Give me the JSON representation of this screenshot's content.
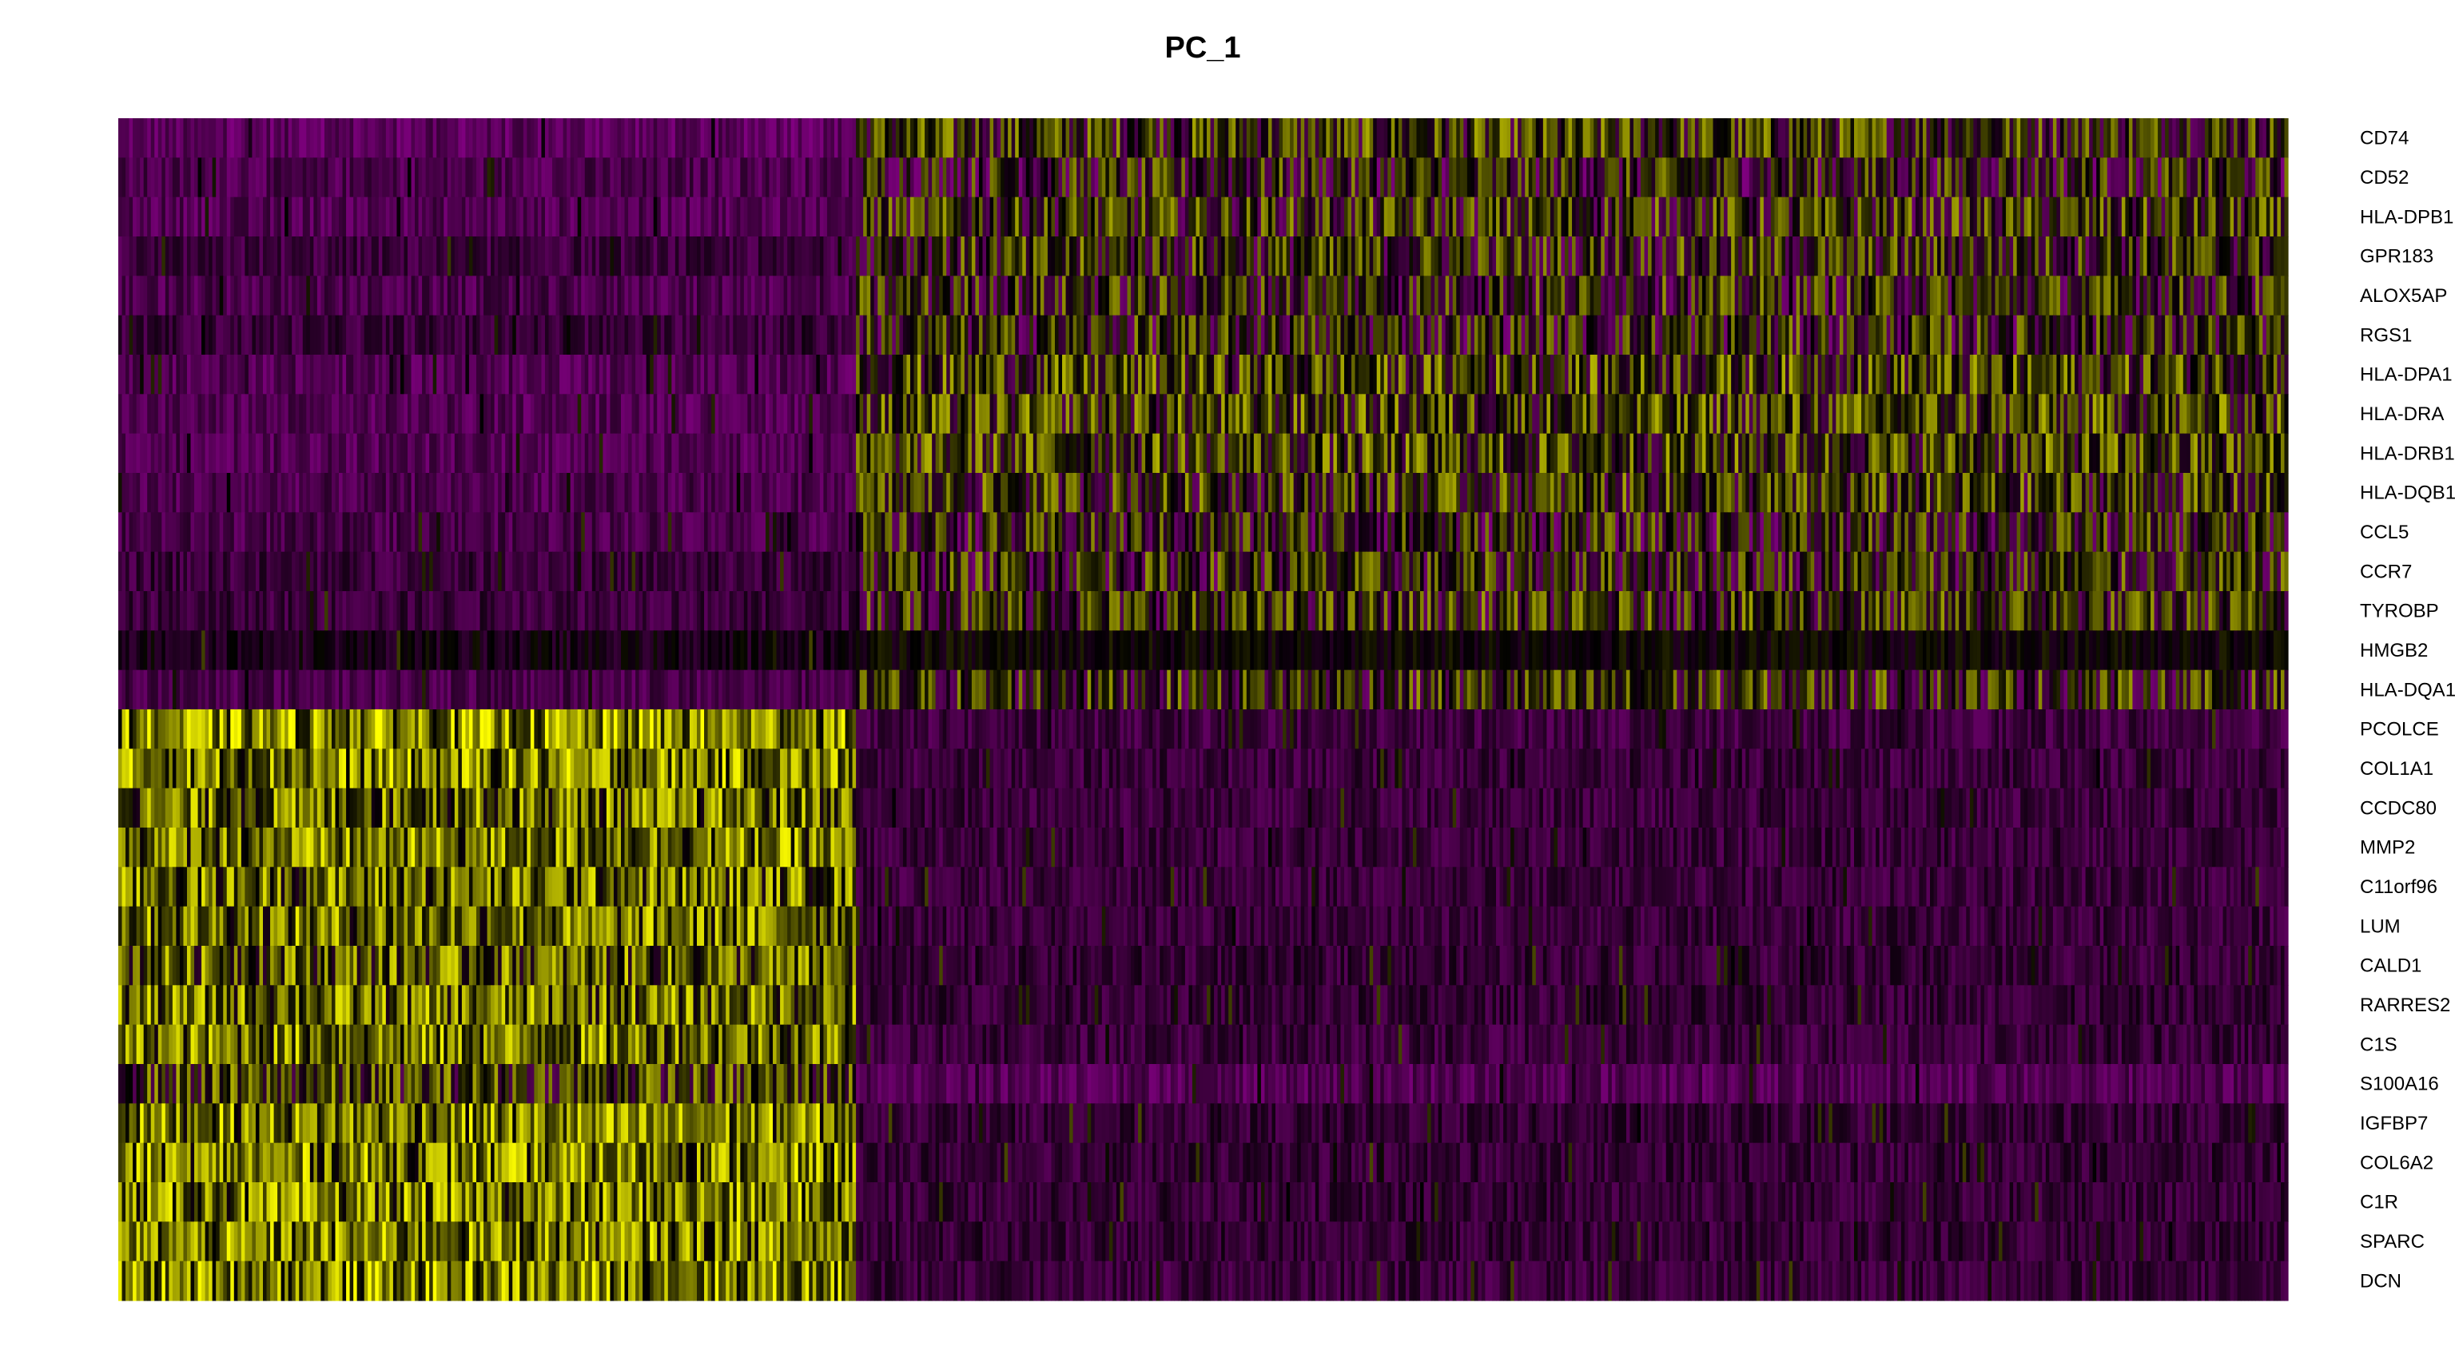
{
  "chart_data": {
    "type": "heatmap",
    "title": "PC_1",
    "xlabel": "",
    "ylabel": "",
    "rows": [
      "CD74",
      "CD52",
      "HLA-DPB1",
      "GPR183",
      "ALOX5AP",
      "RGS1",
      "HLA-DPA1",
      "HLA-DRA",
      "HLA-DRB1",
      "HLA-DQB1",
      "CCL5",
      "CCR7",
      "TYROBP",
      "HMGB2",
      "HLA-DQA1",
      "PCOLCE",
      "COL1A1",
      "CCDC80",
      "MMP2",
      "C11orf96",
      "LUM",
      "CALD1",
      "RARRES2",
      "C1S",
      "S100A16",
      "IGFBP7",
      "COL6A2",
      "C1R",
      "SPARC",
      "DCN"
    ],
    "column_groups": [
      {
        "fraction_of_cells": 0.34
      },
      {
        "fraction_of_cells": 0.66
      }
    ],
    "group_mean_expression": [
      [
        -0.9,
        0.35
      ],
      [
        -0.75,
        0.05
      ],
      [
        -0.8,
        0.25
      ],
      [
        -0.6,
        0.2
      ],
      [
        -0.75,
        0.15
      ],
      [
        -0.55,
        0.1
      ],
      [
        -0.8,
        0.45
      ],
      [
        -0.8,
        0.45
      ],
      [
        -0.8,
        0.45
      ],
      [
        -0.75,
        0.3
      ],
      [
        -0.7,
        0.05
      ],
      [
        -0.55,
        0.15
      ],
      [
        -0.55,
        0.25
      ],
      [
        -0.2,
        0.0
      ],
      [
        -0.7,
        0.2
      ],
      [
        1.3,
        -0.6
      ],
      [
        1.2,
        -0.55
      ],
      [
        1.0,
        -0.55
      ],
      [
        1.1,
        -0.55
      ],
      [
        1.0,
        -0.55
      ],
      [
        1.05,
        -0.55
      ],
      [
        0.85,
        -0.5
      ],
      [
        1.0,
        -0.5
      ],
      [
        1.1,
        -0.55
      ],
      [
        0.45,
        -0.8
      ],
      [
        1.15,
        -0.5
      ],
      [
        1.15,
        -0.5
      ],
      [
        1.1,
        -0.5
      ],
      [
        1.15,
        -0.5
      ],
      [
        1.25,
        -0.55
      ]
    ],
    "color_scale": {
      "low": "#FF00FF",
      "mid": "#000000",
      "high": "#FFFF00",
      "domain": [
        -2.5,
        2.5
      ]
    },
    "legend": "none",
    "grid": false
  }
}
